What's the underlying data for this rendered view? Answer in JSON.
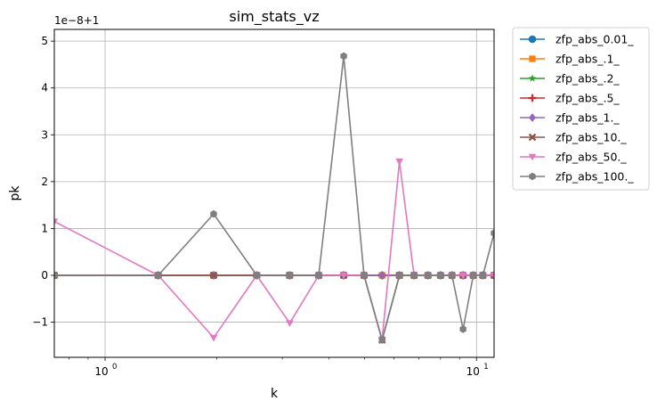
{
  "chart_data": {
    "type": "line",
    "title": "sim_stats_vz",
    "xlabel": "k",
    "ylabel": "pk",
    "x_scale": "log",
    "xlim": [
      0.73,
      11.15
    ],
    "ylim": [
      -1.75,
      5.25
    ],
    "offset_text": "1e−8+1",
    "x_ticks": [
      {
        "value": 1,
        "label": "10",
        "exp": "0"
      },
      {
        "value": 10,
        "label": "10",
        "exp": "1"
      }
    ],
    "y_ticks": [
      {
        "value": -1,
        "label": "−1"
      },
      {
        "value": 0,
        "label": "0"
      },
      {
        "value": 1,
        "label": "1"
      },
      {
        "value": 2,
        "label": "2"
      },
      {
        "value": 3,
        "label": "3"
      },
      {
        "value": 4,
        "label": "4"
      },
      {
        "value": 5,
        "label": "5"
      }
    ],
    "grid": true,
    "legend_position": "outside-upper-right",
    "x": [
      0.73,
      1.39,
      1.96,
      2.56,
      3.14,
      3.76,
      4.39,
      4.98,
      5.57,
      6.2,
      6.79,
      7.4,
      8.0,
      8.59,
      9.2,
      9.8,
      10.4,
      11.15
    ],
    "series": [
      {
        "name": "zfp_abs_0.01_",
        "color": "#1f77b4",
        "marker": "circle",
        "values": [
          0,
          0,
          0,
          0,
          0,
          0,
          0,
          0,
          0,
          0,
          0,
          0,
          0,
          0,
          0,
          0,
          0,
          0
        ]
      },
      {
        "name": "zfp_abs_.1_",
        "color": "#ff7f0e",
        "marker": "square",
        "values": [
          0,
          0,
          0,
          0,
          0,
          0,
          0,
          0,
          0,
          0,
          0,
          0,
          0,
          0,
          0,
          0,
          0,
          0
        ]
      },
      {
        "name": "zfp_abs_.2_",
        "color": "#2ca02c",
        "marker": "star",
        "values": [
          0,
          0,
          0,
          0,
          0,
          0,
          0,
          0,
          0,
          0,
          0,
          0,
          0,
          0,
          0,
          0,
          0,
          0
        ]
      },
      {
        "name": "zfp_abs_.5_",
        "color": "#d62728",
        "marker": "plus",
        "values": [
          0,
          0,
          0,
          0,
          0,
          0,
          0,
          0,
          0,
          0,
          0,
          0,
          0,
          0,
          0,
          0,
          0,
          0
        ]
      },
      {
        "name": "zfp_abs_1._",
        "color": "#9467bd",
        "marker": "diamond",
        "values": [
          0,
          0,
          0,
          0,
          0,
          0,
          0,
          0,
          0,
          0,
          0,
          0,
          0,
          0,
          0,
          0,
          0,
          0
        ]
      },
      {
        "name": "zfp_abs_10._",
        "color": "#8c564b",
        "marker": "x",
        "values": [
          0,
          0,
          0,
          0,
          0,
          0,
          0,
          0,
          -1.38,
          0,
          0,
          0,
          0,
          0,
          0,
          0,
          0,
          0
        ]
      },
      {
        "name": "zfp_abs_50._",
        "color": "#e377c2",
        "marker": "triangle-down",
        "values": [
          1.15,
          0,
          -1.33,
          0,
          -1.02,
          0,
          0,
          0,
          -1.38,
          2.43,
          0,
          0,
          0,
          0,
          0,
          0,
          0,
          0
        ]
      },
      {
        "name": "zfp_abs_100._",
        "color": "#7f7f7f",
        "marker": "hexagon",
        "values": [
          0,
          0,
          1.31,
          0,
          0,
          0,
          4.68,
          0,
          -1.38,
          0,
          0,
          0,
          0,
          0,
          -1.15,
          0,
          0,
          0.9
        ]
      }
    ]
  }
}
